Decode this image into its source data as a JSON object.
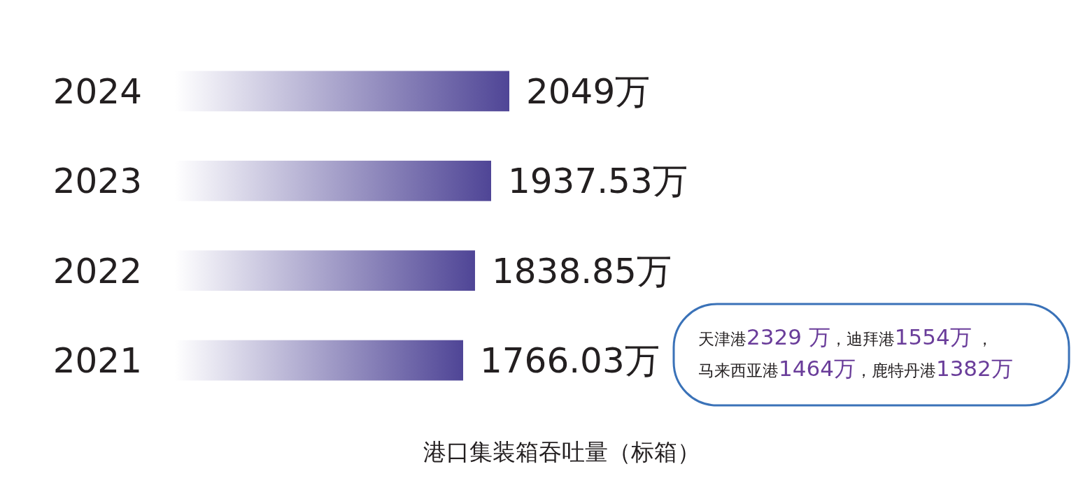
{
  "chart_data": {
    "type": "bar",
    "orientation": "horizontal",
    "categories": [
      "2024",
      "2023",
      "2022",
      "2021"
    ],
    "values": [
      2049,
      1937.53,
      1838.85,
      1766.03
    ],
    "value_labels": [
      "2049万",
      "1937.53万",
      "1838.85万",
      "1766.03万"
    ],
    "color": "#4f4596",
    "tick_labels": "y",
    "xlabel": "港口集装箱吞吐量（标箱）",
    "annotations": [
      "天津港2329 万，迪拜港1554万 ，",
      "马来西亚港1464万，鹿特丹港1382万"
    ]
  }
}
